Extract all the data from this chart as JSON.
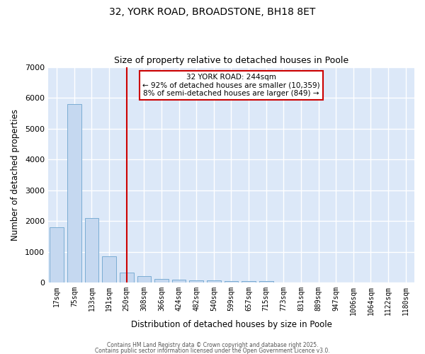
{
  "title_line1": "32, YORK ROAD, BROADSTONE, BH18 8ET",
  "title_line2": "Size of property relative to detached houses in Poole",
  "xlabel": "Distribution of detached houses by size in Poole",
  "ylabel": "Number of detached properties",
  "categories": [
    "17sqm",
    "75sqm",
    "133sqm",
    "191sqm",
    "250sqm",
    "308sqm",
    "366sqm",
    "424sqm",
    "482sqm",
    "540sqm",
    "599sqm",
    "657sqm",
    "715sqm",
    "773sqm",
    "831sqm",
    "889sqm",
    "947sqm",
    "1006sqm",
    "1064sqm",
    "1122sqm",
    "1180sqm"
  ],
  "values": [
    1800,
    5800,
    2100,
    850,
    330,
    200,
    120,
    90,
    80,
    60,
    50,
    50,
    50,
    0,
    0,
    0,
    0,
    0,
    0,
    0,
    0
  ],
  "bar_color": "#c5d8f0",
  "bar_edge_color": "#7badd4",
  "plot_bg_color": "#dce8f8",
  "fig_bg_color": "#ffffff",
  "grid_color": "#ffffff",
  "vline_x_index": 4,
  "vline_color": "#cc0000",
  "annotation_text": "32 YORK ROAD: 244sqm\n← 92% of detached houses are smaller (10,359)\n8% of semi-detached houses are larger (849) →",
  "annotation_box_color": "#cc0000",
  "annotation_bg": "#ffffff",
  "ylim": [
    0,
    7000
  ],
  "yticks": [
    0,
    1000,
    2000,
    3000,
    4000,
    5000,
    6000,
    7000
  ],
  "footer_line1": "Contains HM Land Registry data © Crown copyright and database right 2025.",
  "footer_line2": "Contains public sector information licensed under the Open Government Licence v3.0."
}
